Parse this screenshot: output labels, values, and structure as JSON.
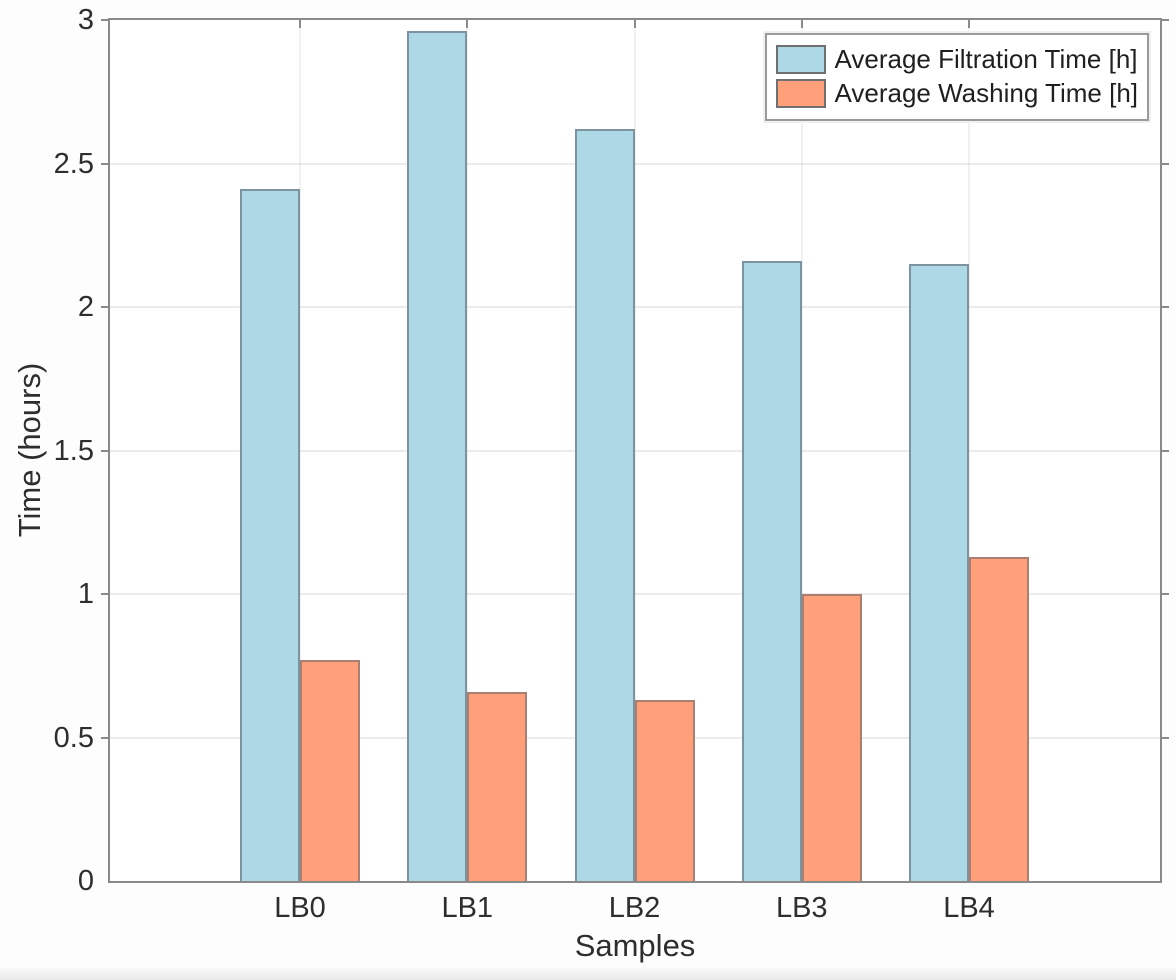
{
  "chart_data": {
    "type": "bar",
    "title": "",
    "xlabel": "Samples",
    "ylabel": "Time (hours)",
    "categories": [
      "LB0",
      "LB1",
      "LB2",
      "LB3",
      "LB4"
    ],
    "series": [
      {
        "name": "Average Filtration Time [h]",
        "color": "#ADD8E6",
        "edge_color": "#7d93a0",
        "values": [
          2.41,
          2.96,
          2.62,
          2.16,
          2.15
        ]
      },
      {
        "name": "Average Washing Time [h]",
        "color": "#FFA07A",
        "edge_color": "#a87f70",
        "values": [
          0.77,
          0.66,
          0.63,
          1.0,
          1.13
        ]
      }
    ],
    "ylim": [
      0,
      3
    ],
    "yticks": [
      0,
      0.5,
      1,
      1.5,
      2,
      2.5,
      3
    ],
    "ytick_labels": [
      "0",
      "0.5",
      "1",
      "1.5",
      "2",
      "2.5",
      "3"
    ],
    "grid": true,
    "grid_color": "#ebebeb",
    "axis_color": "#8a8a8a",
    "legend_position": "top-right"
  }
}
